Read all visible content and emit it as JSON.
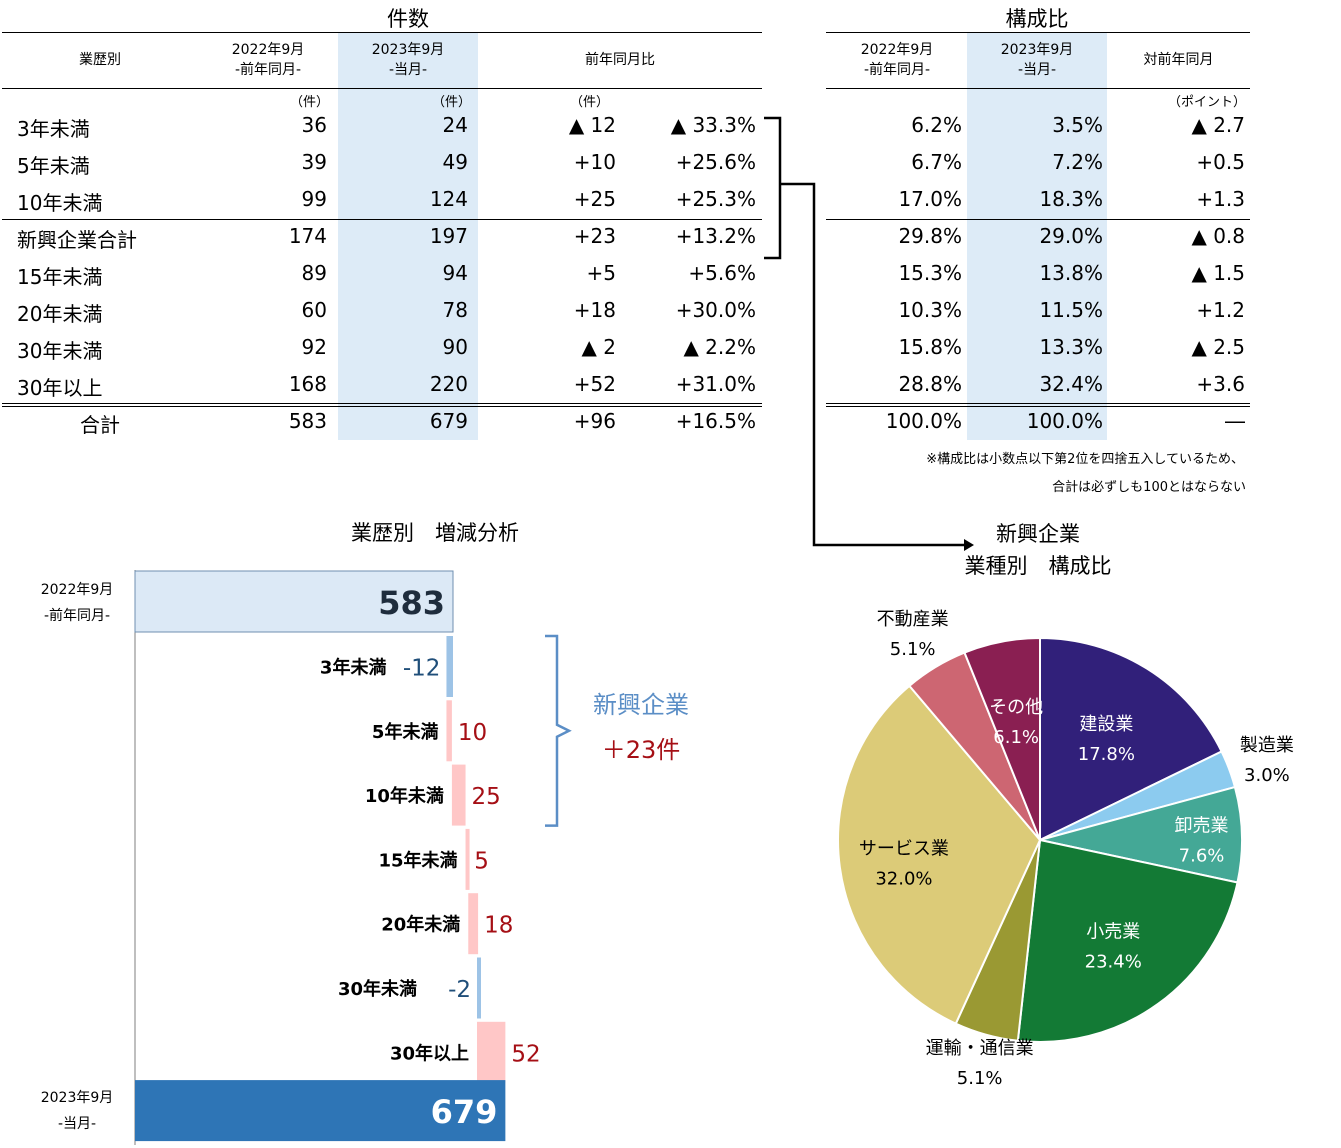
{
  "left_table": {
    "title": "件数",
    "headers": {
      "category": "業歴別",
      "prev_line1": "2022年9月",
      "prev_line2": "-前年同月-",
      "curr_line1": "2023年9月",
      "curr_line2": "-当月-",
      "yoy": "前年同月比"
    },
    "units": {
      "prev": "（件）",
      "curr": "（件）",
      "diff": "（件）"
    },
    "rows": [
      {
        "label": "3年未満",
        "prev": "36",
        "curr": "24",
        "diff": "▲ 12",
        "pct": "▲ 33.3%"
      },
      {
        "label": "5年未満",
        "prev": "39",
        "curr": "49",
        "diff": "+10",
        "pct": "+25.6%"
      },
      {
        "label": "10年未満",
        "prev": "99",
        "curr": "124",
        "diff": "+25",
        "pct": "+25.3%"
      },
      {
        "label": "新興企業合計",
        "prev": "174",
        "curr": "197",
        "diff": "+23",
        "pct": "+13.2%"
      },
      {
        "label": "15年未満",
        "prev": "89",
        "curr": "94",
        "diff": "+5",
        "pct": "+5.6%"
      },
      {
        "label": "20年未満",
        "prev": "60",
        "curr": "78",
        "diff": "+18",
        "pct": "+30.0%"
      },
      {
        "label": "30年未満",
        "prev": "92",
        "curr": "90",
        "diff": "▲ 2",
        "pct": "▲ 2.2%"
      },
      {
        "label": "30年以上",
        "prev": "168",
        "curr": "220",
        "diff": "+52",
        "pct": "+31.0%"
      },
      {
        "label": "合計",
        "prev": "583",
        "curr": "679",
        "diff": "+96",
        "pct": "+16.5%"
      }
    ]
  },
  "right_table": {
    "title": "構成比",
    "headers": {
      "prev_line1": "2022年9月",
      "prev_line2": "-前年同月-",
      "curr_line1": "2023年9月",
      "curr_line2": "-当月-",
      "diff": "対前年同月"
    },
    "unit": "（ポイント）",
    "rows": [
      {
        "prev": "6.2%",
        "curr": "3.5%",
        "diff": "▲ 2.7"
      },
      {
        "prev": "6.7%",
        "curr": "7.2%",
        "diff": "+0.5"
      },
      {
        "prev": "17.0%",
        "curr": "18.3%",
        "diff": "+1.3"
      },
      {
        "prev": "29.8%",
        "curr": "29.0%",
        "diff": "▲ 0.8"
      },
      {
        "prev": "15.3%",
        "curr": "13.8%",
        "diff": "▲ 1.5"
      },
      {
        "prev": "10.3%",
        "curr": "11.5%",
        "diff": "+1.2"
      },
      {
        "prev": "15.8%",
        "curr": "13.3%",
        "diff": "▲ 2.5"
      },
      {
        "prev": "28.8%",
        "curr": "32.4%",
        "diff": "+3.6"
      },
      {
        "prev": "100.0%",
        "curr": "100.0%",
        "diff": "―"
      }
    ],
    "note_line1": "※構成比は小数点以下第2位を四捨五入しているため、",
    "note_line2": "合計は必ずしも100とはならない"
  },
  "chart_data": [
    {
      "type": "bar",
      "subtype": "waterfall",
      "title": "業歴別　増減分析",
      "start": {
        "label_line1": "2022年9月",
        "label_line2": "-前年同月-",
        "value": 583
      },
      "end": {
        "label_line1": "2023年9月",
        "label_line2": "-当月-",
        "value": 679
      },
      "categories": [
        "3年未満",
        "5年未満",
        "10年未満",
        "15年未満",
        "20年未満",
        "30年未満",
        "30年以上"
      ],
      "values": [
        -12,
        10,
        25,
        5,
        18,
        -2,
        52
      ],
      "value_labels": [
        "-12",
        "10",
        "25",
        "5",
        "18",
        "-2",
        "52"
      ],
      "bracket_label": "新興企業",
      "bracket_value": "＋23件",
      "colors": {
        "start": "#dce9f6",
        "end": "#2e75b6",
        "increase": "#ffc7c7",
        "decrease": "#9dc3e6",
        "pos_text": "#a50f15",
        "neg_text": "#1f4e79",
        "bracket": "#5b8ec6"
      }
    },
    {
      "type": "pie",
      "title_line1": "新興企業",
      "title_line2": "業種別　構成比",
      "slices": [
        {
          "label": "建設業",
          "value": 17.8,
          "text": "17.8%",
          "color": "#31207a",
          "label_color": "#ffffff"
        },
        {
          "label": "製造業",
          "value": 3.0,
          "text": "3.0%",
          "color": "#8ccbef",
          "label_color": "#000000"
        },
        {
          "label": "卸売業",
          "value": 7.6,
          "text": "7.6%",
          "color": "#44a896",
          "label_color": "#ffffff"
        },
        {
          "label": "小売業",
          "value": 23.4,
          "text": "23.4%",
          "color": "#137a35",
          "label_color": "#ffffff"
        },
        {
          "label": "運輸・通信業",
          "value": 5.1,
          "text": "5.1%",
          "color": "#9a9933",
          "label_color": "#000000"
        },
        {
          "label": "サービス業",
          "value": 32.0,
          "text": "32.0%",
          "color": "#dccb78",
          "label_color": "#000000"
        },
        {
          "label": "不動産業",
          "value": 5.1,
          "text": "5.1%",
          "color": "#cd6672",
          "label_color": "#000000"
        },
        {
          "label": "その他",
          "value": 6.1,
          "text": "6.1%",
          "color": "#8a1f52",
          "label_color": "#ffffff"
        }
      ]
    }
  ]
}
